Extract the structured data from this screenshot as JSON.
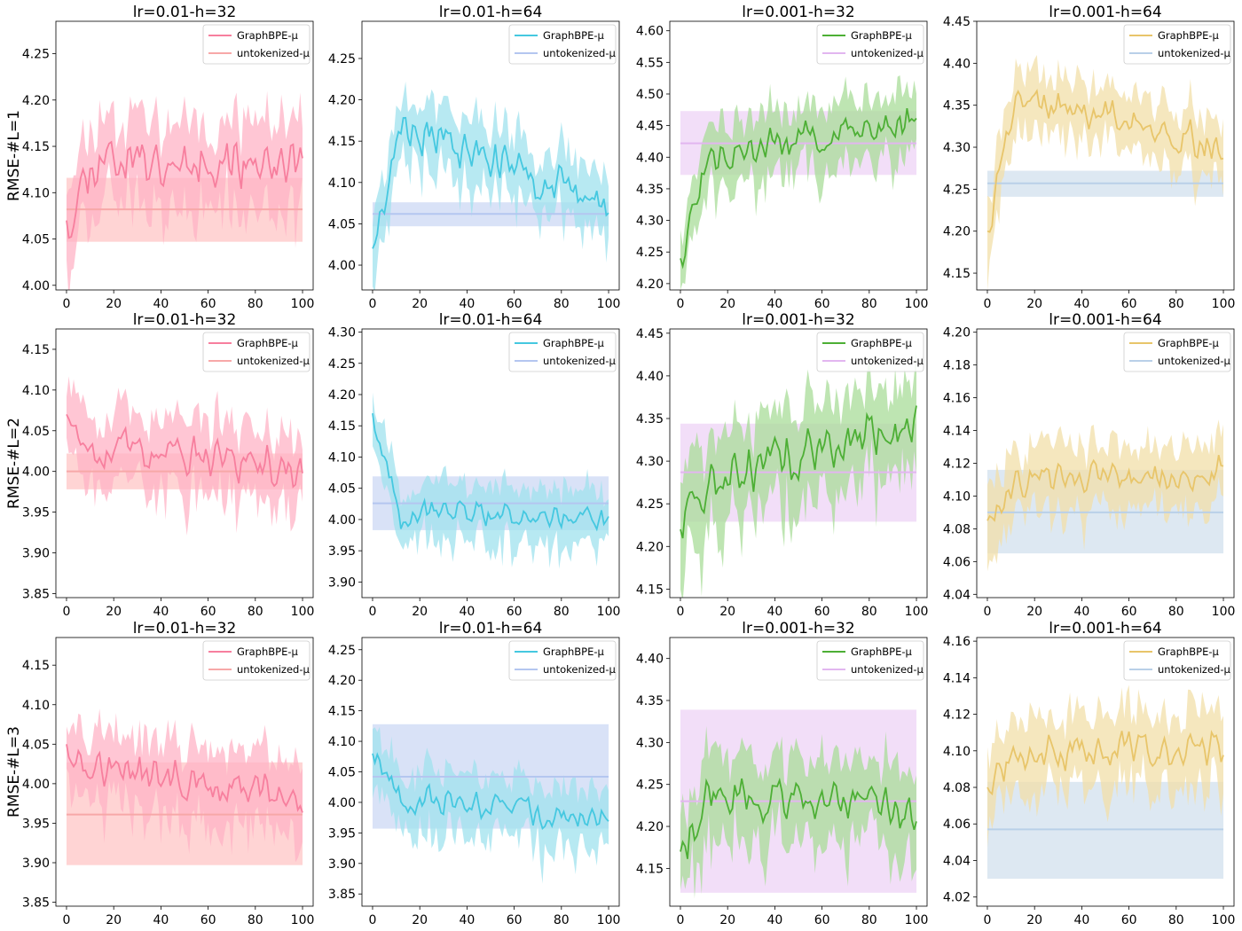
{
  "chart_data": {
    "type": "grid-of-line-charts",
    "rows": 3,
    "cols": 4,
    "row_labels": [
      "RMSE-#L=1",
      "RMSE-#L=2",
      "RMSE-#L=3"
    ],
    "series_names": [
      "GraphBPE-μ",
      "untokenized-μ"
    ],
    "x_range": [
      0,
      100
    ],
    "x_ticks": [
      0,
      20,
      40,
      60,
      80,
      100
    ],
    "panels": [
      {
        "title": "lr=0.01-h=32",
        "color": "#f77f9e",
        "band_color": "#ffb3c6",
        "base_color": "#f7a8a8",
        "base_band_color": "#ffc2c2",
        "ylim": [
          3.995,
          4.285
        ],
        "yticks": [
          4.0,
          4.05,
          4.1,
          4.15,
          4.2,
          4.25
        ],
        "baseline": 4.082,
        "baseline_band": [
          4.047,
          4.116
        ],
        "start": 4.07,
        "mid": 4.14,
        "end": 4.13,
        "noise": 0.035,
        "band_half": 0.045,
        "seed": 11
      },
      {
        "title": "lr=0.01-h=64",
        "color": "#45c8e0",
        "band_color": "#9fe2ee",
        "base_color": "#b4c6f0",
        "base_band_color": "#c9d6f3",
        "ylim": [
          3.97,
          4.295
        ],
        "yticks": [
          4.0,
          4.05,
          4.1,
          4.15,
          4.2,
          4.25
        ],
        "baseline": 4.062,
        "baseline_band": [
          4.047,
          4.076
        ],
        "start": 4.02,
        "mid": 4.17,
        "end": 4.07,
        "noise": 0.03,
        "band_half": 0.04,
        "seed": 23
      },
      {
        "title": "lr=0.001-h=32",
        "color": "#4daf35",
        "band_color": "#a8dc98",
        "base_color": "#e2b6f0",
        "base_band_color": "#ecd0f5",
        "ylim": [
          4.19,
          4.615
        ],
        "yticks": [
          4.2,
          4.25,
          4.3,
          4.35,
          4.4,
          4.45,
          4.5,
          4.55,
          4.6
        ],
        "baseline": 4.422,
        "baseline_band": [
          4.372,
          4.473
        ],
        "start": 4.24,
        "mid": 4.4,
        "end": 4.46,
        "noise": 0.035,
        "band_half": 0.05,
        "seed": 37
      },
      {
        "title": "lr=0.001-h=64",
        "color": "#e8c56a",
        "band_color": "#f2dfa8",
        "base_color": "#b9d0e8",
        "base_band_color": "#cfdeec",
        "ylim": [
          4.13,
          4.45
        ],
        "yticks": [
          4.15,
          4.2,
          4.25,
          4.3,
          4.35,
          4.4,
          4.45
        ],
        "baseline": 4.257,
        "baseline_band": [
          4.241,
          4.272
        ],
        "start": 4.2,
        "mid": 4.36,
        "end": 4.3,
        "noise": 0.025,
        "band_half": 0.035,
        "seed": 41
      },
      {
        "title": "lr=0.01-h=32",
        "color": "#f77f9e",
        "band_color": "#ffb3c6",
        "base_color": "#f7a8a8",
        "base_band_color": "#ffc2c2",
        "ylim": [
          3.845,
          4.175
        ],
        "yticks": [
          3.85,
          3.9,
          3.95,
          4.0,
          4.05,
          4.1,
          4.15
        ],
        "baseline": 4.0,
        "baseline_band": [
          3.978,
          4.022
        ],
        "start": 4.07,
        "mid": 4.03,
        "end": 4.0,
        "noise": 0.03,
        "band_half": 0.045,
        "seed": 53
      },
      {
        "title": "lr=0.01-h=64",
        "color": "#45c8e0",
        "band_color": "#9fe2ee",
        "base_color": "#b4c6f0",
        "base_band_color": "#c9d6f3",
        "ylim": [
          3.875,
          4.305
        ],
        "yticks": [
          3.9,
          3.95,
          4.0,
          4.05,
          4.1,
          4.15,
          4.2,
          4.25,
          4.3
        ],
        "baseline": 4.026,
        "baseline_band": [
          3.983,
          4.069
        ],
        "start": 4.17,
        "mid": 4.01,
        "end": 4.0,
        "noise": 0.025,
        "band_half": 0.045,
        "seed": 67
      },
      {
        "title": "lr=0.001-h=32",
        "color": "#4daf35",
        "band_color": "#a8dc98",
        "base_color": "#e2b6f0",
        "base_band_color": "#ecd0f5",
        "ylim": [
          4.14,
          4.455
        ],
        "yticks": [
          4.15,
          4.2,
          4.25,
          4.3,
          4.35,
          4.4,
          4.45
        ],
        "baseline": 4.287,
        "baseline_band": [
          4.229,
          4.344
        ],
        "start": 4.22,
        "mid": 4.28,
        "end": 4.34,
        "noise": 0.035,
        "band_half": 0.055,
        "seed": 71
      },
      {
        "title": "lr=0.001-h=64",
        "color": "#e8c56a",
        "band_color": "#f2dfa8",
        "base_color": "#b9d0e8",
        "base_band_color": "#cfdeec",
        "ylim": [
          4.038,
          4.202
        ],
        "yticks": [
          4.04,
          4.06,
          4.08,
          4.1,
          4.12,
          4.14,
          4.16,
          4.18,
          4.2
        ],
        "baseline": 4.09,
        "baseline_band": [
          4.065,
          4.116
        ],
        "start": 4.085,
        "mid": 4.11,
        "end": 4.115,
        "noise": 0.012,
        "band_half": 0.02,
        "seed": 83
      },
      {
        "title": "lr=0.01-h=32",
        "color": "#f77f9e",
        "band_color": "#ffb3c6",
        "base_color": "#f7a8a8",
        "base_band_color": "#ffc2c2",
        "ylim": [
          3.845,
          4.185
        ],
        "yticks": [
          3.85,
          3.9,
          3.95,
          4.0,
          4.05,
          4.1,
          4.15
        ],
        "baseline": 3.961,
        "baseline_band": [
          3.897,
          4.027
        ],
        "start": 4.05,
        "mid": 4.02,
        "end": 3.98,
        "noise": 0.03,
        "band_half": 0.045,
        "seed": 97
      },
      {
        "title": "lr=0.01-h=64",
        "color": "#45c8e0",
        "band_color": "#9fe2ee",
        "base_color": "#b4c6f0",
        "base_band_color": "#c9d6f3",
        "ylim": [
          3.83,
          4.27
        ],
        "yticks": [
          3.85,
          3.9,
          3.95,
          4.0,
          4.05,
          4.1,
          4.15,
          4.2,
          4.25
        ],
        "baseline": 4.042,
        "baseline_band": [
          3.957,
          4.128
        ],
        "start": 4.08,
        "mid": 4.01,
        "end": 3.97,
        "noise": 0.03,
        "band_half": 0.05,
        "seed": 101
      },
      {
        "title": "lr=0.001-h=32",
        "color": "#4daf35",
        "band_color": "#a8dc98",
        "base_color": "#e2b6f0",
        "base_band_color": "#ecd0f5",
        "ylim": [
          4.105,
          4.425
        ],
        "yticks": [
          4.15,
          4.2,
          4.25,
          4.3,
          4.35,
          4.4
        ],
        "baseline": 4.23,
        "baseline_band": [
          4.121,
          4.339
        ],
        "start": 4.17,
        "mid": 4.24,
        "end": 4.22,
        "noise": 0.03,
        "band_half": 0.05,
        "seed": 113
      },
      {
        "title": "lr=0.001-h=64",
        "color": "#e8c56a",
        "band_color": "#f2dfa8",
        "base_color": "#b9d0e8",
        "base_band_color": "#cfdeec",
        "ylim": [
          4.015,
          4.162
        ],
        "yticks": [
          4.02,
          4.04,
          4.06,
          4.08,
          4.1,
          4.12,
          4.14,
          4.16
        ],
        "baseline": 4.057,
        "baseline_band": [
          4.03,
          4.083
        ],
        "start": 4.08,
        "mid": 4.1,
        "end": 4.1,
        "noise": 0.012,
        "band_half": 0.02,
        "seed": 127
      }
    ]
  }
}
